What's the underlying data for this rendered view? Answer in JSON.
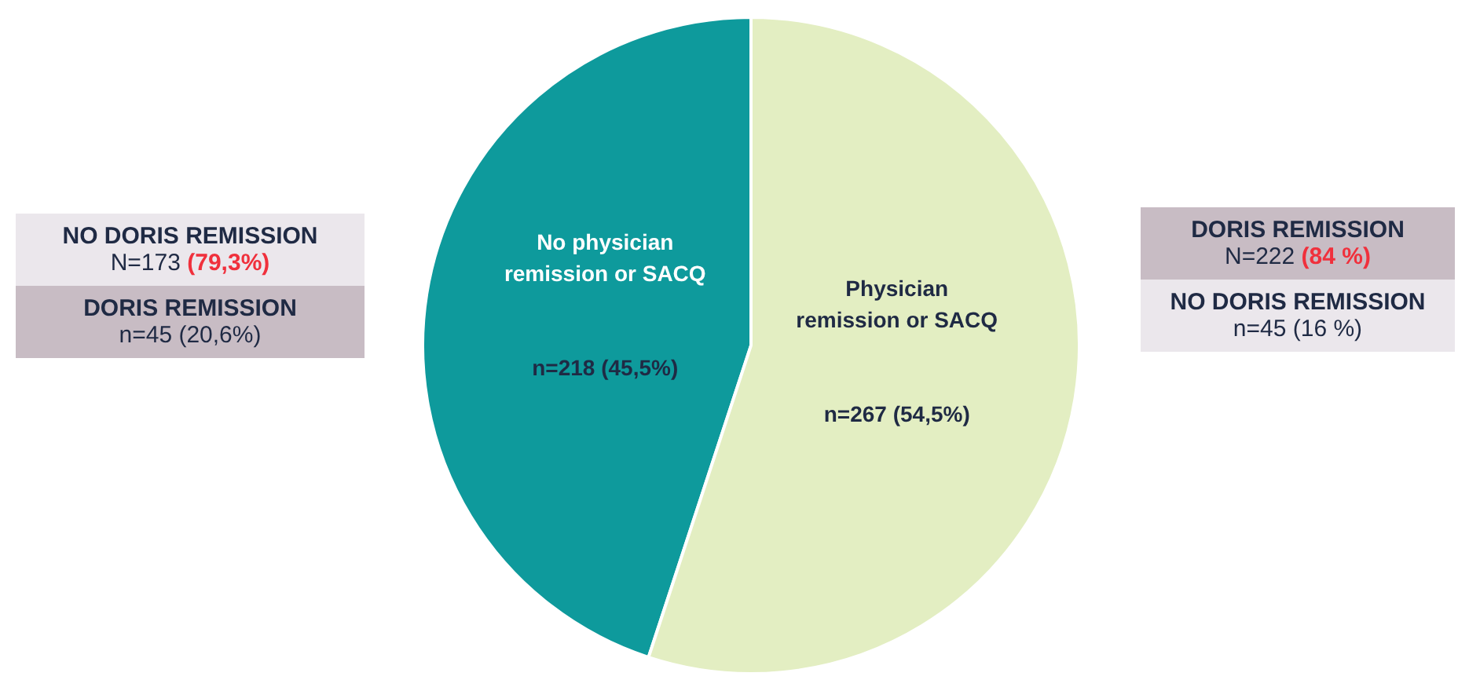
{
  "chart_data": {
    "type": "pie",
    "categories": [
      "No physician remission or SACQ",
      "Physician remission or SACQ"
    ],
    "values": [
      218,
      267
    ],
    "value_labels": [
      "n=218 (45,5%)",
      "n=267 (54,5%)"
    ],
    "colors": [
      "#0e9a9c",
      "#e3eec2"
    ],
    "legend": false,
    "annotations": [
      "NO DORIS REMISSION",
      "N=173 (79,3%)",
      "DORIS REMISSION",
      "n=45 (20,6%)",
      "DORIS REMISSION",
      "N=222 (84 %)",
      "NO DORIS REMISSION",
      "n=45 (16 %)"
    ]
  }
}
